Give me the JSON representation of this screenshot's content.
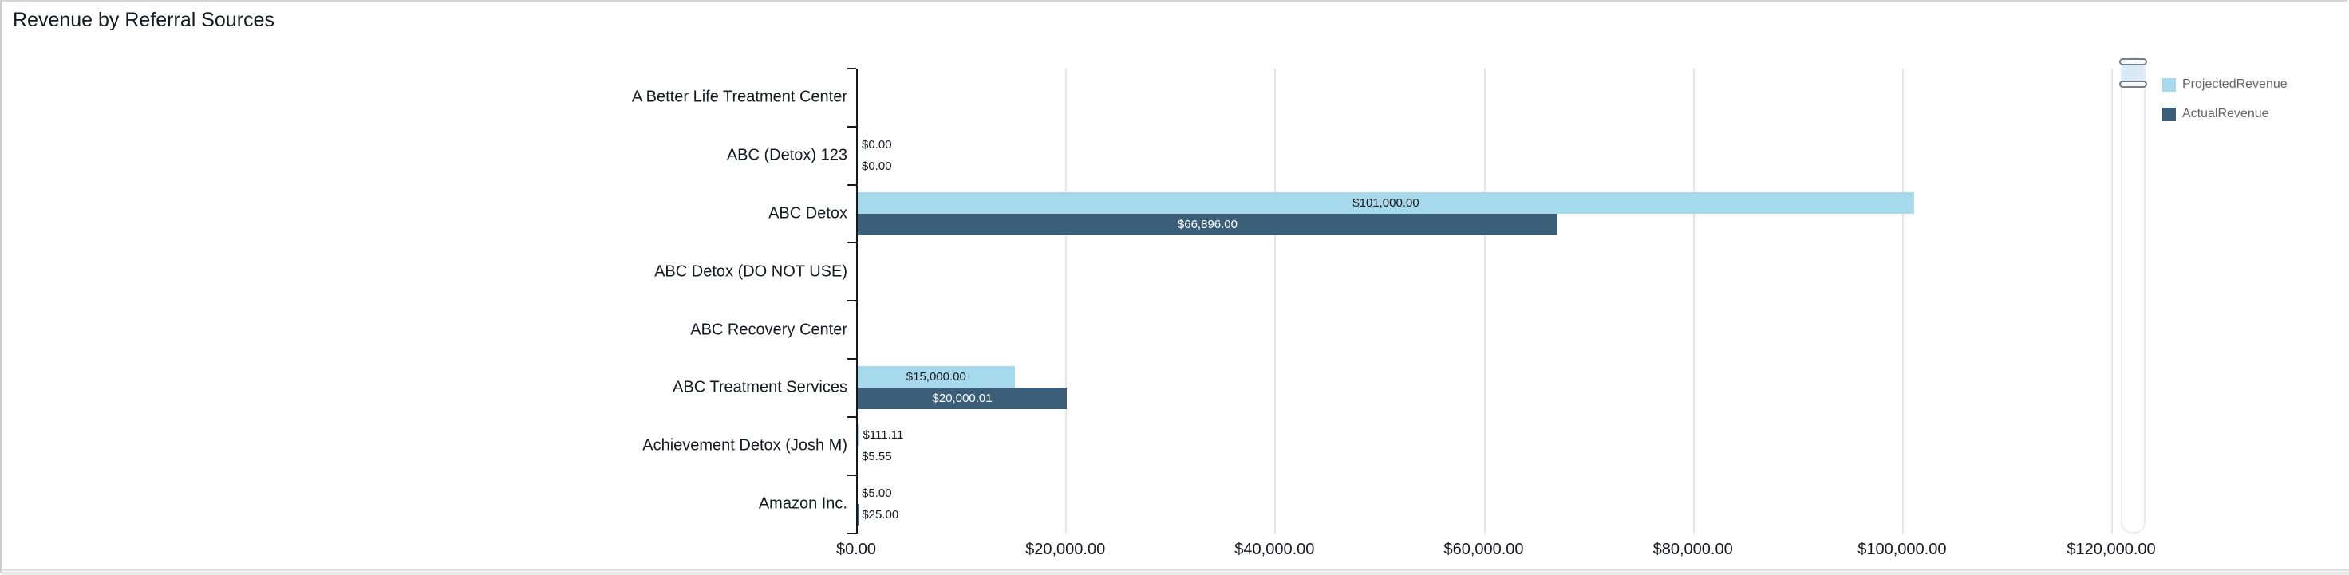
{
  "title": "Revenue by Referral Sources",
  "legend": {
    "items": [
      {
        "label": "ProjectedRevenue",
        "color": "#A7D9EC"
      },
      {
        "label": "ActualRevenue",
        "color": "#3B5F78"
      }
    ]
  },
  "chart_data": {
    "type": "bar",
    "orientation": "horizontal",
    "title": "Revenue by Referral Sources",
    "categories": [
      "A Better Life Treatment Center",
      "ABC (Detox) 123",
      "ABC Detox",
      "ABC Detox (DO NOT USE)",
      "ABC Recovery Center",
      "ABC Treatment Services",
      "Achievement Detox (Josh M)",
      "Amazon Inc."
    ],
    "series": [
      {
        "name": "ProjectedRevenue",
        "color": "#A7D9EC",
        "values": [
          null,
          0,
          101000,
          null,
          null,
          15000,
          111.11,
          5
        ],
        "labels": [
          null,
          "$0.00",
          "$101,000.00",
          null,
          null,
          "$15,000.00",
          "$111.11",
          "$5.00"
        ]
      },
      {
        "name": "ActualRevenue",
        "color": "#3B5F78",
        "values": [
          null,
          0,
          66896,
          null,
          null,
          20000.01,
          5.55,
          25
        ],
        "labels": [
          null,
          "$0.00",
          "$66,896.00",
          null,
          null,
          "$20,000.01",
          "$5.55",
          "$25.00"
        ]
      }
    ],
    "x_axis": {
      "tick_labels": [
        "$0.00",
        "$20,000.00",
        "$40,000.00",
        "$60,000.00",
        "$80,000.00",
        "$100,000.00",
        "$120,000.00"
      ],
      "tick_values": [
        0,
        20000,
        40000,
        60000,
        80000,
        100000,
        120000
      ],
      "min": 0,
      "max": 120000,
      "grid": true
    },
    "legend_position": "top-right"
  }
}
